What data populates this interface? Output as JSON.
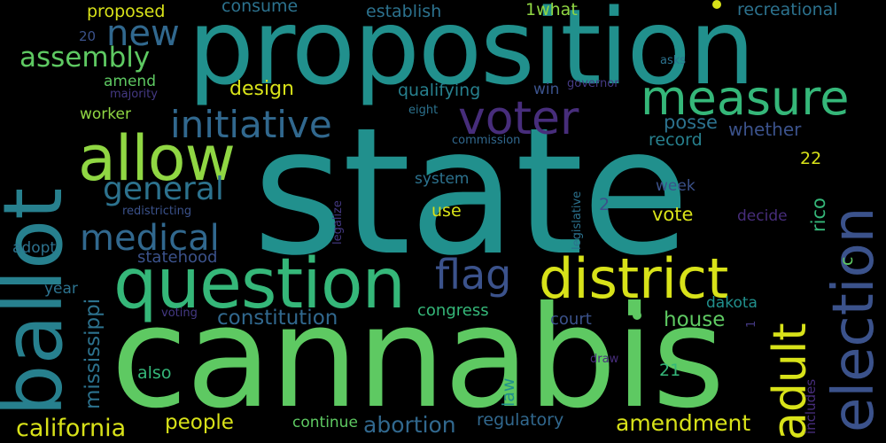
{
  "words": {
    "state": "state",
    "cannabis": "cannabis",
    "proposition": "proposition",
    "ballot": "ballot",
    "question": "question",
    "allow": "allow",
    "measure": "measure",
    "election": "election",
    "district": "district",
    "voter": "voter",
    "adult": "adult",
    "initiative": "initiative",
    "medical": "medical",
    "general": "general",
    "flag": "flag",
    "new": "new",
    "assembly": "assembly",
    "california": "california",
    "abortion": "abortion",
    "amendment": "amendment",
    "people": "people",
    "constitution": "constitution",
    "mississippi": "mississippi",
    "house": "house",
    "design": "design",
    "proposed": "proposed",
    "consume": "consume",
    "establish": "establish",
    "recreational": "recreational",
    "qualifying": "qualifying",
    "posse": "posse",
    "record": "record",
    "whether": "whether",
    "rico": "rico",
    "vote": "vote",
    "use": "use",
    "statehood": "statehood",
    "congress": "congress",
    "court": "court",
    "also": "also",
    "law": "law",
    "regulatory": "regulatory",
    "continue": "continue",
    "dakota": "dakota",
    "adopt": "adopt",
    "year": "year",
    "system": "system",
    "week": "week",
    "decide": "decide",
    "worker": "worker",
    "amend": "amend",
    "majority": "majority",
    "win": "win",
    "governor": "governor",
    "eight": "eight",
    "commission": "commission",
    "redistricting": "redistricting",
    "legalize": "legalize",
    "legislative": "legislative",
    "voting": "voting",
    "includes": "includes",
    "draw": "draw",
    "asks": "asks",
    "n1what": "1what",
    "n20": "20",
    "n22": "22",
    "n2": "2",
    "n21": "21",
    "n1": "1",
    "c": "c"
  },
  "colors": {
    "background": "#000000",
    "teal": "#21908d",
    "green": "#35b779",
    "light_green": "#5ec962",
    "lime": "#90d743",
    "yellow": "#d8e219",
    "blue": "#31688e",
    "slate": "#3b528b",
    "indigo": "#443983",
    "purple": "#472d7b",
    "dark_purple": "#440154",
    "steel": "#2c728e",
    "sea": "#27808e"
  }
}
